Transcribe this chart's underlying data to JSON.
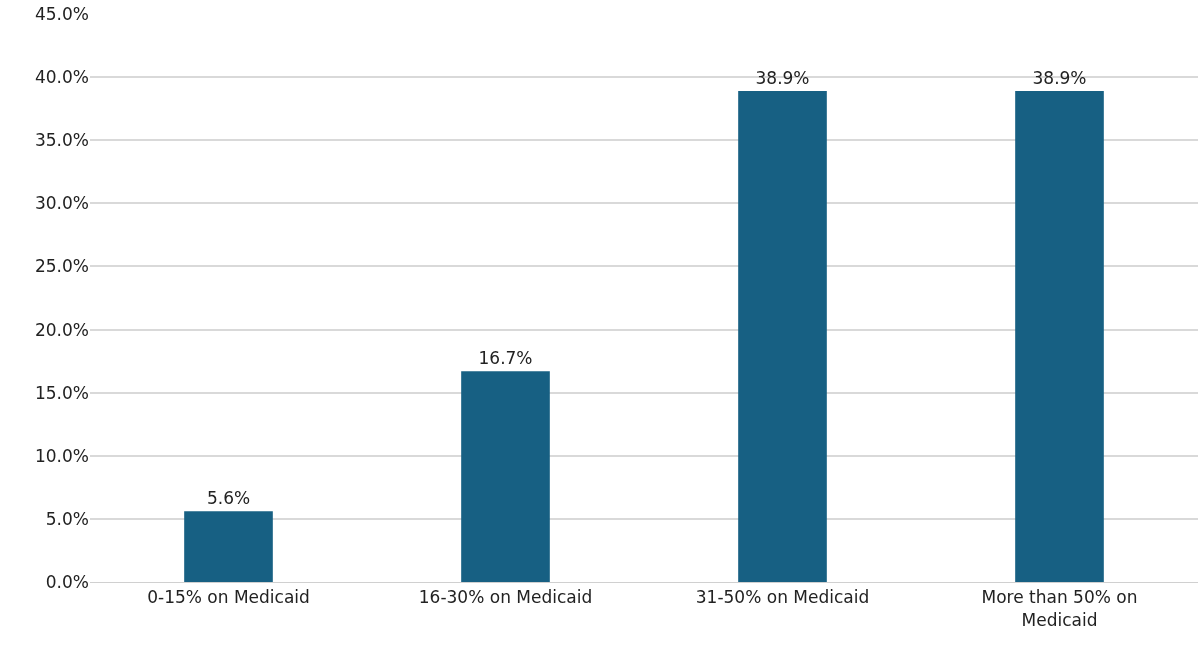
{
  "chart_data": {
    "type": "bar",
    "categories": [
      "0-15% on Medicaid",
      "16-30% on Medicaid",
      "31-50% on Medicaid",
      "More than 50% on Medicaid"
    ],
    "values": [
      5.6,
      16.7,
      38.9,
      38.9
    ],
    "value_labels": [
      "5.6%",
      "16.7%",
      "38.9%",
      "38.9%"
    ],
    "color": "#176083",
    "ylim": [
      0,
      45
    ],
    "yticks": [
      {
        "value": 0,
        "label": "0.0%"
      },
      {
        "value": 5,
        "label": "5.0%"
      },
      {
        "value": 10,
        "label": "10.0%"
      },
      {
        "value": 15,
        "label": "15.0%"
      },
      {
        "value": 20,
        "label": "20.0%"
      },
      {
        "value": 25,
        "label": "25.0%"
      },
      {
        "value": 30,
        "label": "30.0%"
      },
      {
        "value": 35,
        "label": "35.0%"
      },
      {
        "value": 40,
        "label": "40.0%"
      },
      {
        "value": 45,
        "label": "45.0%"
      }
    ],
    "grid": "y",
    "legend": false
  }
}
